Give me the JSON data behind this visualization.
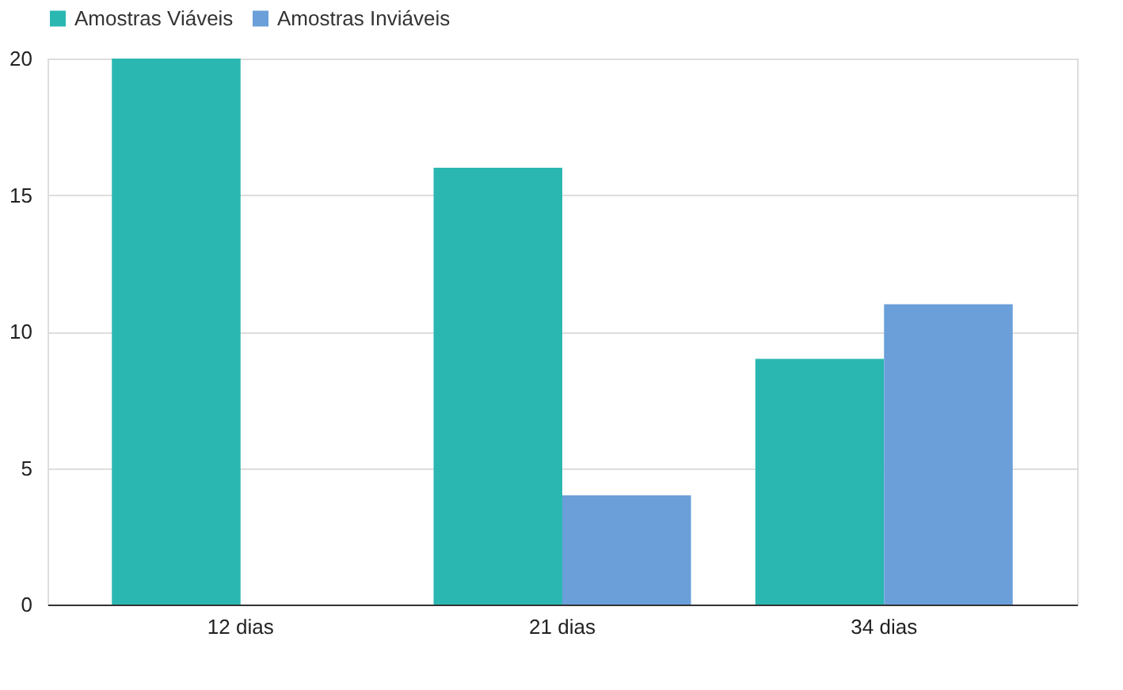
{
  "chart_data": {
    "type": "bar",
    "categories": [
      "12 dias",
      "21 dias",
      "34 dias"
    ],
    "series": [
      {
        "name": "Amostras Viáveis",
        "color": "#2ab7b1",
        "values": [
          20,
          16,
          9
        ]
      },
      {
        "name": "Amostras Inviáveis",
        "color": "#6a9fd9",
        "values": [
          0,
          4,
          11
        ]
      }
    ],
    "ylim": [
      0,
      20
    ],
    "yticks": [
      0,
      5,
      10,
      15,
      20
    ],
    "grid": "y",
    "legend": "top"
  }
}
